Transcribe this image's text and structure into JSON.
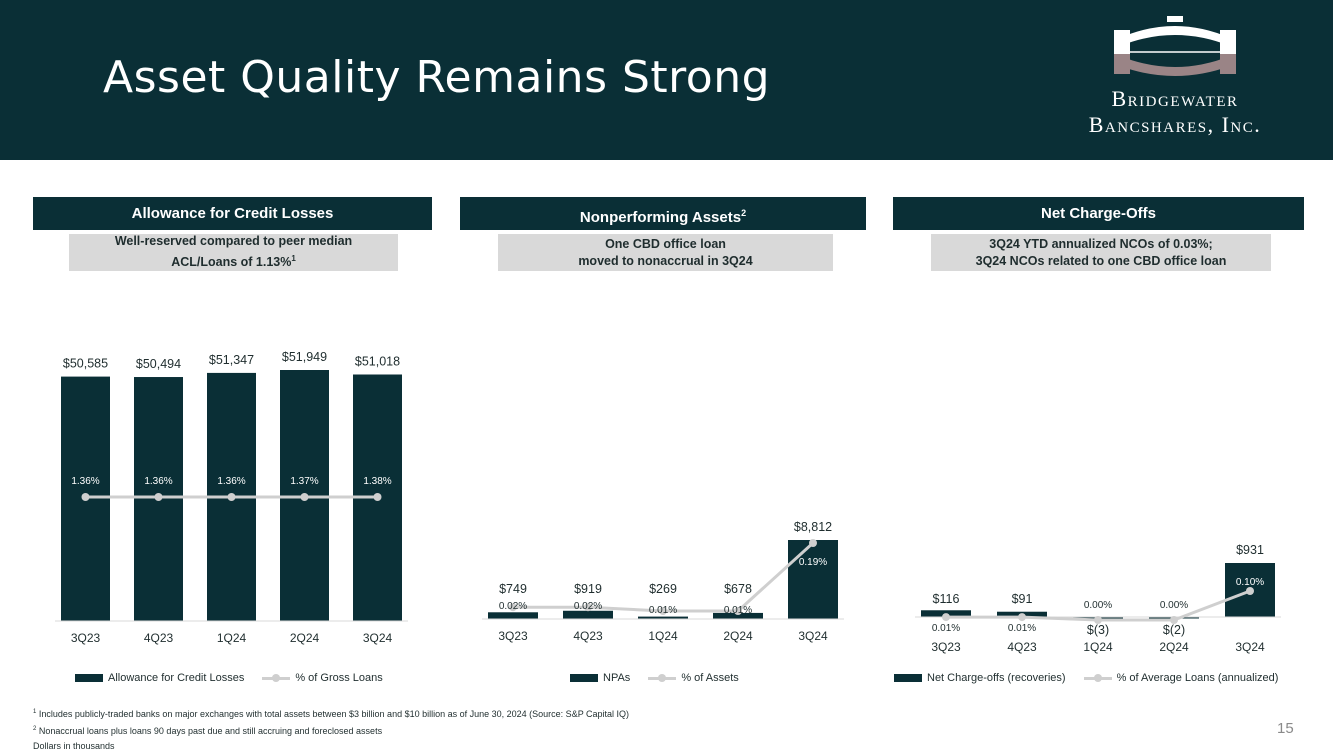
{
  "slide": {
    "title": "Asset Quality Remains Strong",
    "logo_line1": "Bridgewater",
    "logo_line2": "Bancshares, Inc.",
    "page_number": "15"
  },
  "colors": {
    "dark": "#0a2f36",
    "gray_band": "#d9d9d9",
    "line": "#cfcfcf"
  },
  "panels": [
    {
      "header": "Allowance for Credit Losses",
      "header_sup": "",
      "sub_line1": "Well-reserved compared to peer median",
      "sub_line2": "ACL/Loans of 1.13%",
      "sub_sup": "1"
    },
    {
      "header": "Nonperforming Assets",
      "header_sup": "2",
      "sub_line1": "One CBD office loan",
      "sub_line2": "moved to nonaccrual in 3Q24",
      "sub_sup": ""
    },
    {
      "header": "Net Charge-Offs",
      "header_sup": "",
      "sub_line1": "3Q24 YTD annualized NCOs of 0.03%;",
      "sub_line2": "3Q24 NCOs related to one CBD office loan",
      "sub_sup": ""
    }
  ],
  "chart_data": [
    {
      "type": "bar",
      "title": "Allowance for Credit Losses",
      "categories": [
        "3Q23",
        "4Q23",
        "1Q24",
        "2Q24",
        "3Q24"
      ],
      "series": [
        {
          "name": "Allowance for Credit Losses",
          "type": "bar",
          "values": [
            50585,
            50494,
            51347,
            51949,
            51018
          ],
          "labels": [
            "$50,585",
            "$50,494",
            "$51,347",
            "$51,949",
            "$51,018"
          ]
        },
        {
          "name": "% of Gross Loans",
          "type": "line",
          "values": [
            1.36,
            1.36,
            1.36,
            1.37,
            1.38
          ],
          "labels": [
            "1.36%",
            "1.36%",
            "1.36%",
            "1.37%",
            "1.38%"
          ]
        }
      ]
    },
    {
      "type": "bar",
      "title": "Nonperforming Assets",
      "categories": [
        "3Q23",
        "4Q23",
        "1Q24",
        "2Q24",
        "3Q24"
      ],
      "series": [
        {
          "name": "NPAs",
          "type": "bar",
          "values": [
            749,
            919,
            269,
            678,
            8812
          ],
          "labels": [
            "$749",
            "$919",
            "$269",
            "$678",
            "$8,812"
          ]
        },
        {
          "name": "% of Assets",
          "type": "line",
          "values": [
            0.02,
            0.02,
            0.01,
            0.01,
            0.19
          ],
          "labels": [
            "0.02%",
            "0.02%",
            "0.01%",
            "0.01%",
            "0.19%"
          ]
        }
      ]
    },
    {
      "type": "bar",
      "title": "Net Charge-Offs",
      "categories": [
        "3Q23",
        "4Q23",
        "1Q24",
        "2Q24",
        "3Q24"
      ],
      "series": [
        {
          "name": "Net Charge-offs (recoveries)",
          "type": "bar",
          "values": [
            116,
            91,
            -3,
            -2,
            931
          ],
          "labels": [
            "$116",
            "$91",
            "$(3)",
            "$(2)",
            "$931"
          ]
        },
        {
          "name": "% of Average Loans (annualized)",
          "type": "line",
          "values": [
            0.01,
            0.01,
            0.0,
            0.0,
            0.1
          ],
          "labels": [
            "0.01%",
            "0.01%",
            "0.00%",
            "0.00%",
            "0.10%"
          ]
        }
      ]
    }
  ],
  "footnotes": {
    "n1_mark": "1",
    "n1": "Includes publicly-traded banks on major exchanges with total assets between $3 billion and $10 billion as of June 30, 2024 (Source: S&P Capital IQ)",
    "n2_mark": "2",
    "n2": "Nonaccrual loans plus loans 90 days past due and still accruing and foreclosed assets",
    "n3": "Dollars in thousands"
  }
}
